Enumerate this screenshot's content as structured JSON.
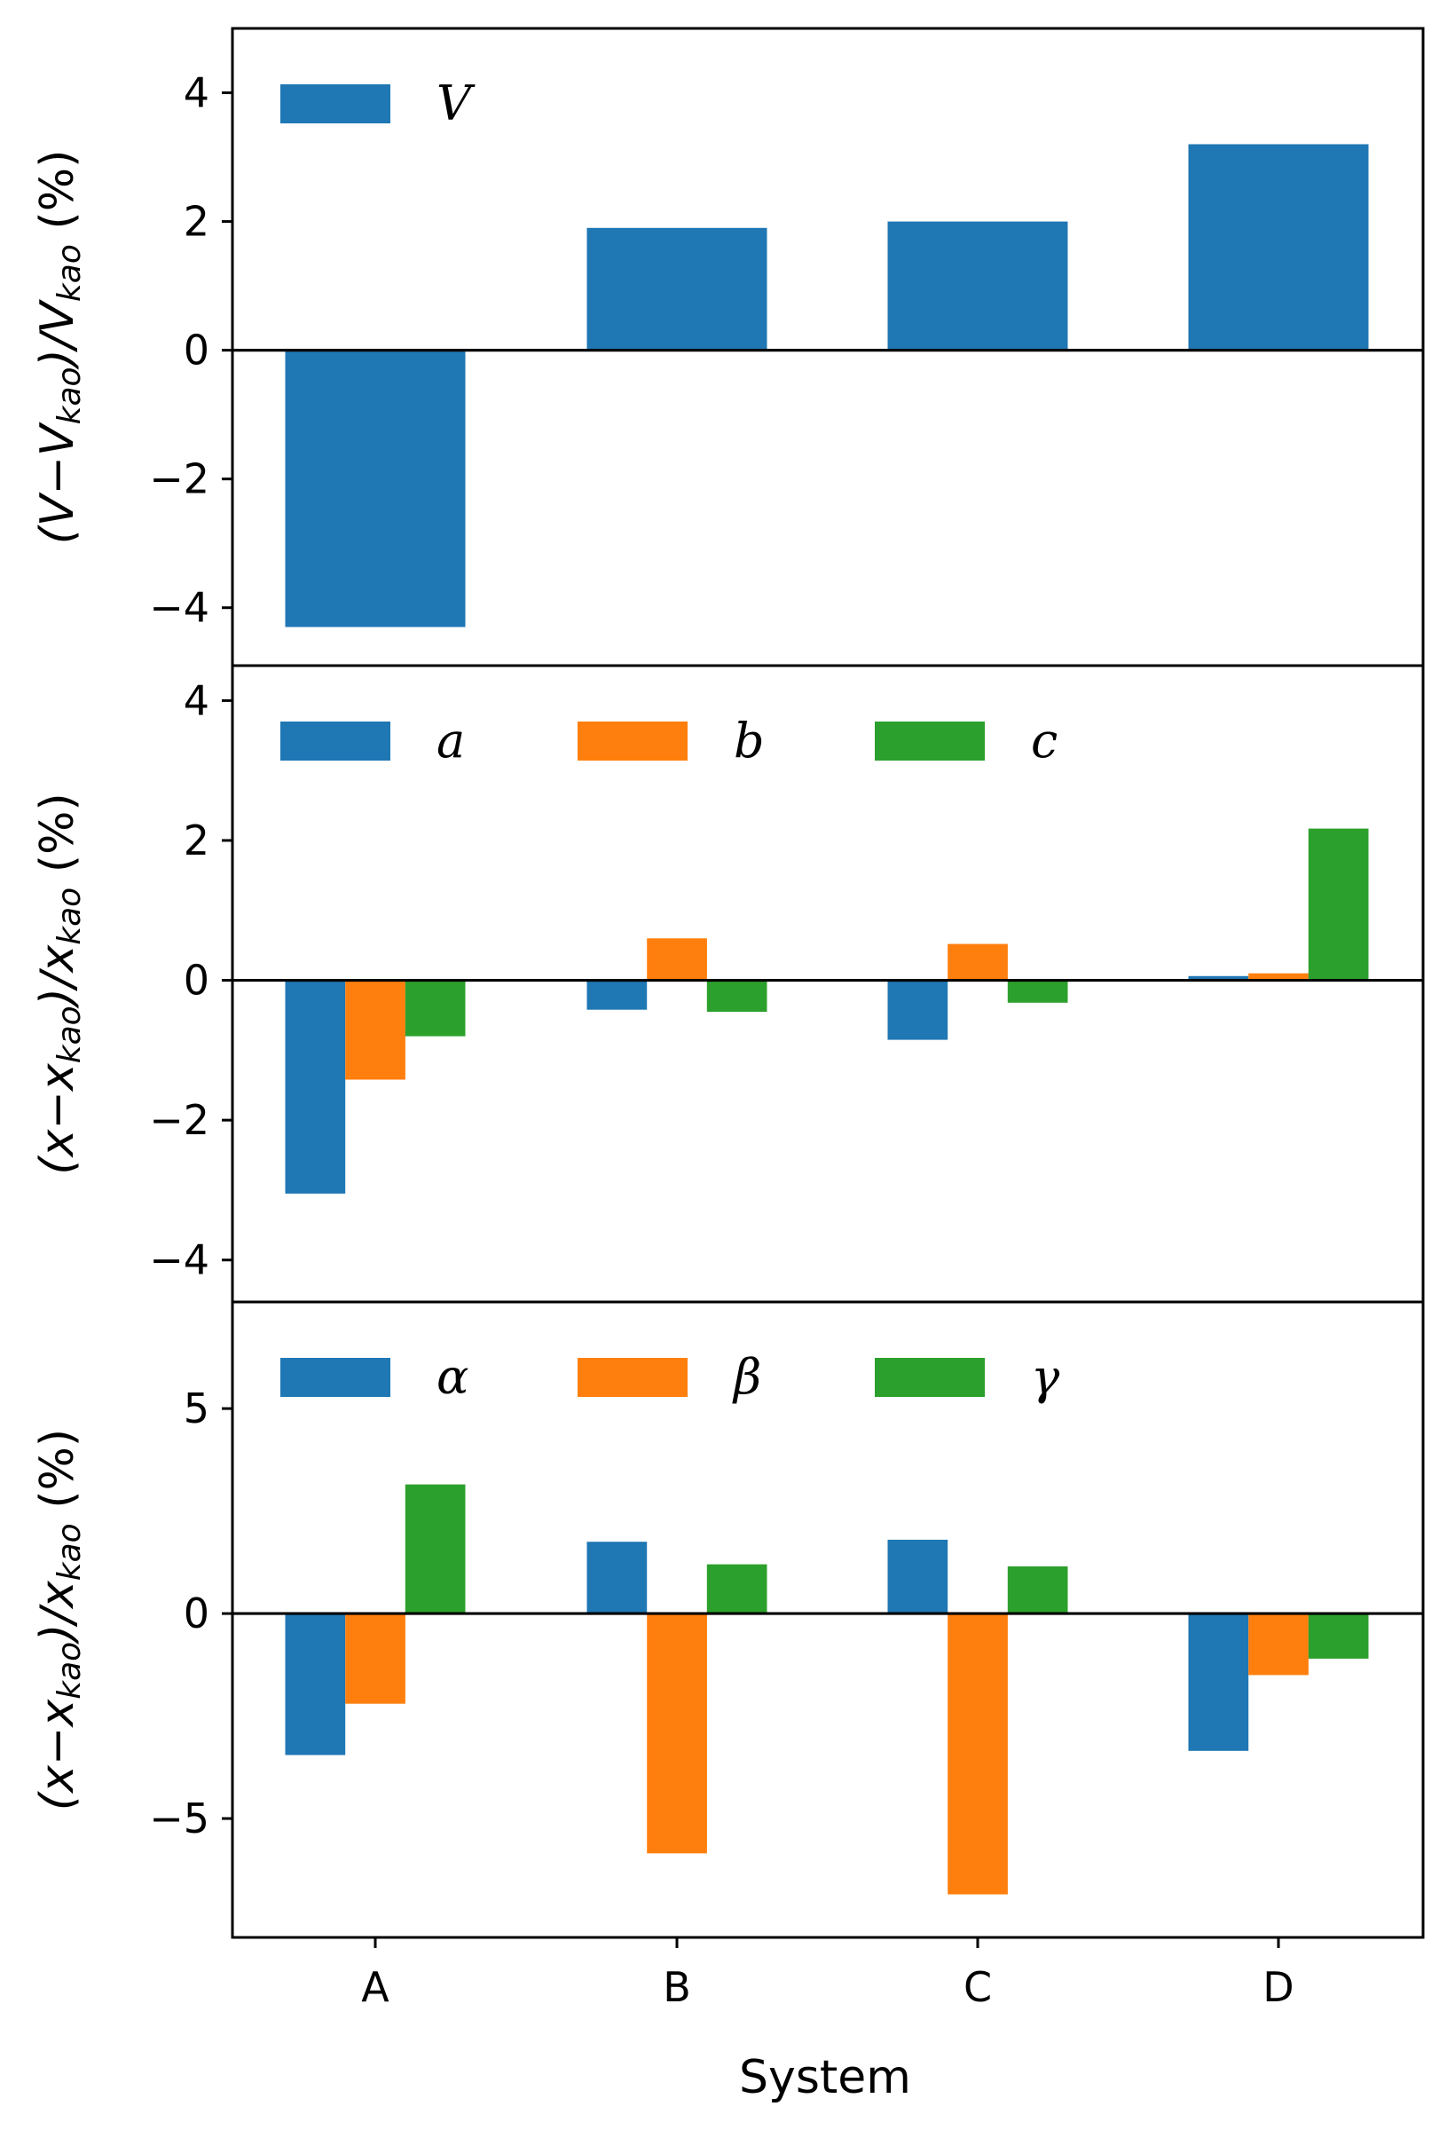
{
  "chart_data": [
    {
      "type": "bar",
      "panel": "top",
      "categories": [
        "A",
        "B",
        "C",
        "D"
      ],
      "series": [
        {
          "name": "V",
          "color": "#1f77b4",
          "values": [
            -4.3,
            1.9,
            2.0,
            3.2
          ]
        }
      ],
      "ylabel": "(V−V_kao)/V_kao (%)",
      "ylabel_parts": [
        "(V−V",
        "kao",
        ")/V",
        "kao",
        " (%)"
      ],
      "ylim": [
        -4.9,
        5.0
      ],
      "yticks": [
        4,
        2,
        0,
        -2,
        -4
      ],
      "ytick_labels": [
        "4",
        "2",
        "0",
        "−2",
        "−4"
      ],
      "legend": [
        "V"
      ],
      "legend_position": "top-left",
      "zero_line": true
    },
    {
      "type": "bar",
      "panel": "middle",
      "categories": [
        "A",
        "B",
        "C",
        "D"
      ],
      "series": [
        {
          "name": "a",
          "color": "#1f77b4",
          "values": [
            -3.05,
            -0.42,
            -0.85,
            0.06
          ]
        },
        {
          "name": "b",
          "color": "#ff7f0e",
          "values": [
            -1.42,
            0.6,
            0.52,
            0.1
          ]
        },
        {
          "name": "c",
          "color": "#2ca02c",
          "values": [
            -0.8,
            -0.45,
            -0.32,
            2.17
          ]
        }
      ],
      "ylabel": "(x−x_kao)/x_kao (%)",
      "ylabel_parts": [
        "(x−x",
        "kao",
        ")/x",
        "kao",
        " (%)"
      ],
      "ylim": [
        -4.6,
        4.5
      ],
      "yticks": [
        4,
        2,
        0,
        -2,
        -4
      ],
      "ytick_labels": [
        "4",
        "2",
        "0",
        "−2",
        "−4"
      ],
      "legend": [
        "a",
        "b",
        "c"
      ],
      "legend_position": "top-left",
      "zero_line": true
    },
    {
      "type": "bar",
      "panel": "bottom",
      "categories": [
        "A",
        "B",
        "C",
        "D"
      ],
      "series": [
        {
          "name": "α",
          "color": "#1f77b4",
          "values": [
            -3.45,
            1.75,
            1.8,
            -3.35
          ]
        },
        {
          "name": "β",
          "color": "#ff7f0e",
          "values": [
            -2.2,
            -5.85,
            -6.85,
            -1.5
          ]
        },
        {
          "name": "γ",
          "color": "#2ca02c",
          "values": [
            3.15,
            1.2,
            1.15,
            -1.1
          ]
        }
      ],
      "ylabel": "(x−x_kao)/x_kao (%)",
      "ylabel_parts": [
        "(x−x",
        "kao",
        ")/x",
        "kao",
        " (%)"
      ],
      "ylim": [
        -7.9,
        7.6
      ],
      "yticks": [
        5,
        0,
        -5
      ],
      "ytick_labels": [
        "5",
        "0",
        "−5"
      ],
      "legend": [
        "α",
        "β",
        "γ"
      ],
      "legend_position": "top-left",
      "zero_line": true
    }
  ],
  "xlabel": "System",
  "xtick_labels": [
    "A",
    "B",
    "C",
    "D"
  ]
}
